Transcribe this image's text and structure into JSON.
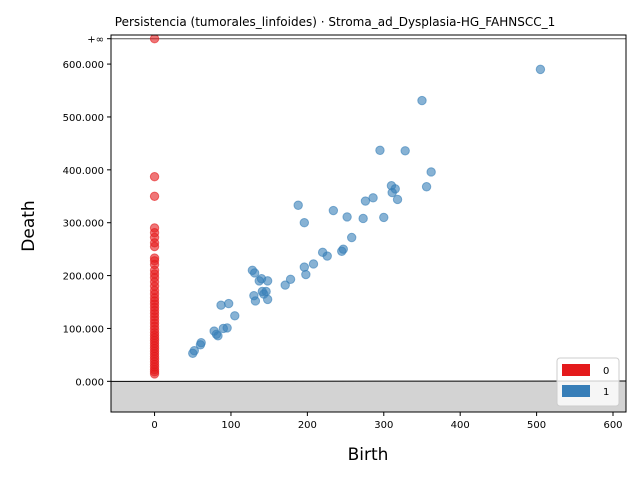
{
  "chart_data": {
    "type": "scatter",
    "title": "Persistencia (tumorales_linfoides) · Stroma_ad_Dysplasia-HG_FAHNSCC_1",
    "xlabel": "Birth",
    "ylabel": "Death",
    "xlim": [
      -57,
      617
    ],
    "ylim": [
      -58000,
      655000
    ],
    "x_ticks": [
      0,
      100,
      200,
      300,
      400,
      500,
      600
    ],
    "y_ticks": [
      0,
      100000,
      200000,
      300000,
      400000,
      500000,
      600000
    ],
    "y_tick_labels": [
      "0.000",
      "100.000",
      "200.000",
      "300.000",
      "400.000",
      "500.000",
      "600.000"
    ],
    "infinity_label": "+∞",
    "infinity_value": 648000,
    "legend_position": "lower right",
    "grid": false,
    "series": [
      {
        "name": "0",
        "color": "#e41a1c",
        "points": [
          [
            0,
            648000
          ],
          [
            0,
            387000
          ],
          [
            0,
            350000
          ],
          [
            0,
            290000
          ],
          [
            0,
            281000
          ],
          [
            0,
            272000
          ],
          [
            0,
            262000
          ],
          [
            0,
            255000
          ],
          [
            0,
            233000
          ],
          [
            0,
            228000
          ],
          [
            0,
            221000
          ],
          [
            0,
            210000
          ],
          [
            0,
            203000
          ],
          [
            0,
            196000
          ],
          [
            0,
            188000
          ],
          [
            0,
            180000
          ],
          [
            0,
            172000
          ],
          [
            0,
            165000
          ],
          [
            0,
            158000
          ],
          [
            0,
            152000
          ],
          [
            0,
            146000
          ],
          [
            0,
            140000
          ],
          [
            0,
            134000
          ],
          [
            0,
            128000
          ],
          [
            0,
            122000
          ],
          [
            0,
            116000
          ],
          [
            0,
            110000
          ],
          [
            0,
            104000
          ],
          [
            0,
            98000
          ],
          [
            0,
            92000
          ],
          [
            0,
            87000
          ],
          [
            0,
            82000
          ],
          [
            0,
            77000
          ],
          [
            0,
            72000
          ],
          [
            0,
            67000
          ],
          [
            0,
            62000
          ],
          [
            0,
            57000
          ],
          [
            0,
            52000
          ],
          [
            0,
            47000
          ],
          [
            0,
            42000
          ],
          [
            0,
            37000
          ],
          [
            0,
            32000
          ],
          [
            0,
            27000
          ],
          [
            0,
            22000
          ],
          [
            0,
            18000
          ],
          [
            0,
            14000
          ]
        ]
      },
      {
        "name": "1",
        "color": "#377eb8",
        "points": [
          [
            505,
            590000
          ],
          [
            350,
            531000
          ],
          [
            295,
            437000
          ],
          [
            328,
            436000
          ],
          [
            362,
            396000
          ],
          [
            310,
            370000
          ],
          [
            315,
            364000
          ],
          [
            356,
            368000
          ],
          [
            311,
            357000
          ],
          [
            286,
            347000
          ],
          [
            318,
            344000
          ],
          [
            276,
            341000
          ],
          [
            188,
            333000
          ],
          [
            234,
            323000
          ],
          [
            196,
            300000
          ],
          [
            252,
            311000
          ],
          [
            273,
            308000
          ],
          [
            300,
            310000
          ],
          [
            258,
            272000
          ],
          [
            220,
            244000
          ],
          [
            226,
            237000
          ],
          [
            247,
            250000
          ],
          [
            245,
            246000
          ],
          [
            208,
            222000
          ],
          [
            196,
            216000
          ],
          [
            128,
            210000
          ],
          [
            131,
            205000
          ],
          [
            198,
            202000
          ],
          [
            178,
            193000
          ],
          [
            171,
            182000
          ],
          [
            140,
            194000
          ],
          [
            137,
            190000
          ],
          [
            148,
            190000
          ],
          [
            141,
            170000
          ],
          [
            146,
            170000
          ],
          [
            143,
            165000
          ],
          [
            130,
            162000
          ],
          [
            148,
            155000
          ],
          [
            132,
            152000
          ],
          [
            97,
            147000
          ],
          [
            87,
            144000
          ],
          [
            105,
            124000
          ],
          [
            95,
            101000
          ],
          [
            90,
            100000
          ],
          [
            78,
            95000
          ],
          [
            81,
            89000
          ],
          [
            83,
            86000
          ],
          [
            61,
            73000
          ],
          [
            60,
            69000
          ],
          [
            52,
            58000
          ],
          [
            50,
            53000
          ]
        ]
      }
    ]
  }
}
